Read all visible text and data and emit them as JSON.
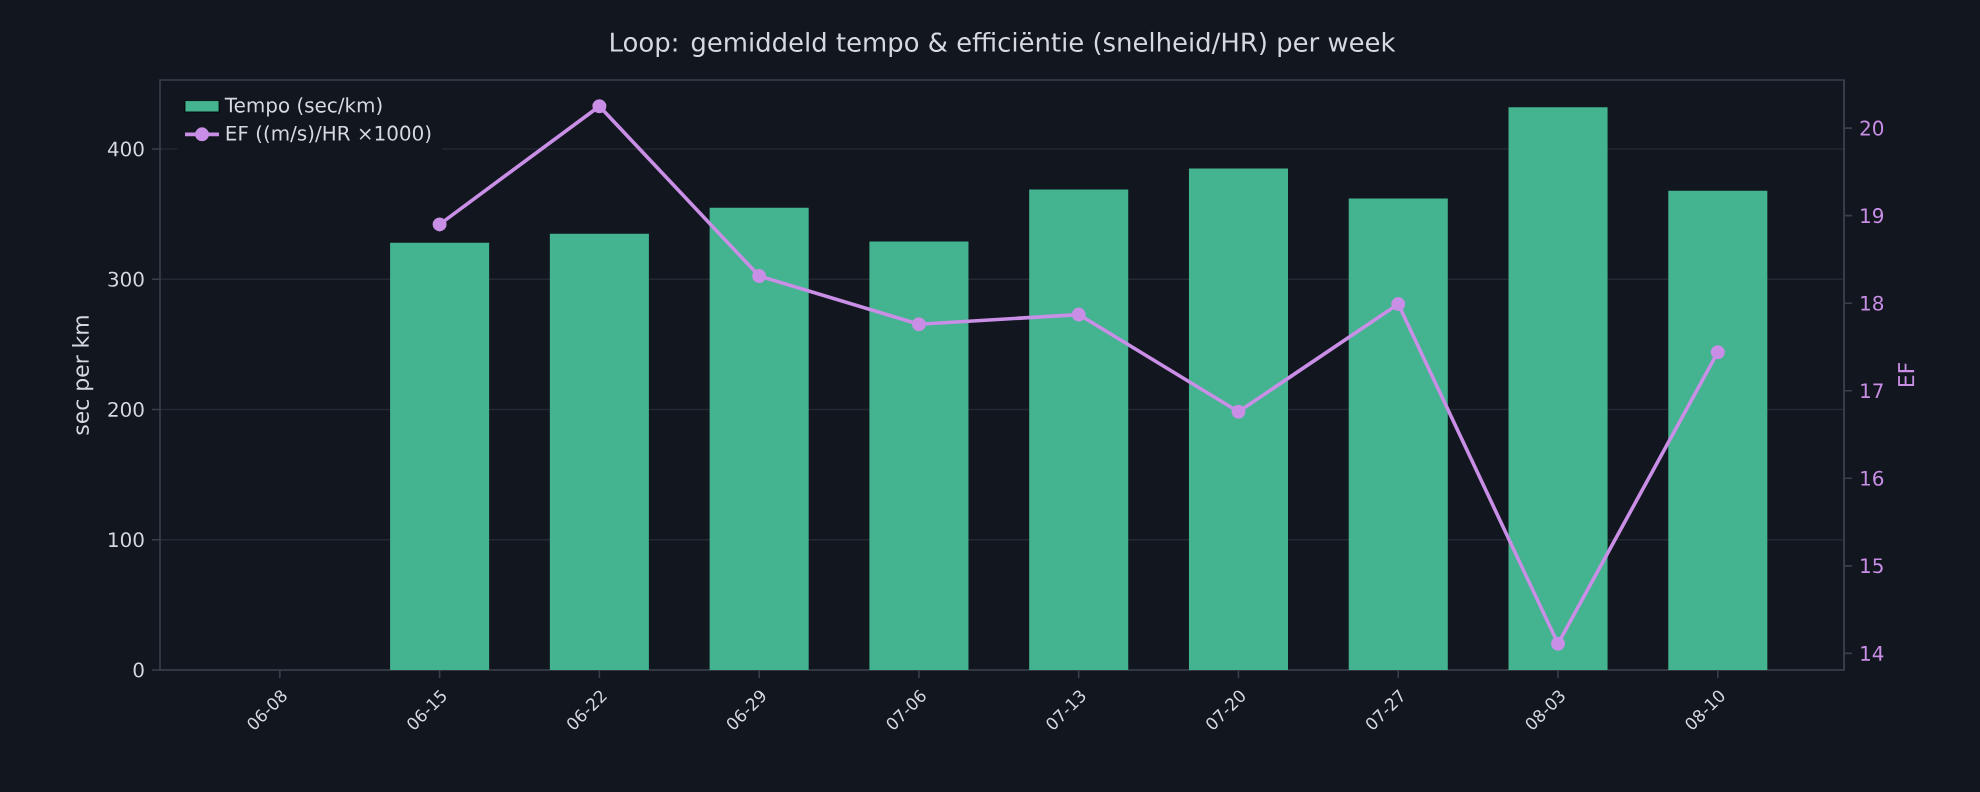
{
  "chart_data": {
    "type": "bar",
    "title": "Loop: gemiddeld tempo & efficiëntie (snelheid/HR) per week",
    "categories": [
      "06-08",
      "06-15",
      "06-22",
      "06-29",
      "07-06",
      "07-13",
      "07-20",
      "07-27",
      "08-03",
      "08-10"
    ],
    "series": [
      {
        "name": "Tempo (sec/km)",
        "color": "#43b48f",
        "values": [
          null,
          328,
          335,
          355,
          329,
          369,
          385,
          362,
          432,
          368
        ]
      },
      {
        "name": "EF ((m/s)/HR ×1000)",
        "type": "line",
        "axis": "y2",
        "color": "#c98ee6",
        "marker": "circle",
        "values": [
          null,
          18.9,
          20.25,
          18.31,
          17.76,
          17.87,
          16.76,
          17.99,
          14.11,
          17.44
        ]
      }
    ],
    "ylabel": "sec per km",
    "y2label": "EF",
    "ylim": [
      0,
      453
    ],
    "yticks": [
      0,
      100,
      200,
      300,
      400
    ],
    "y2lim": [
      13.81,
      20.55
    ],
    "y2ticks": [
      14,
      15,
      16,
      17,
      18,
      19,
      20
    ],
    "grid": "y",
    "legend": "top left"
  }
}
